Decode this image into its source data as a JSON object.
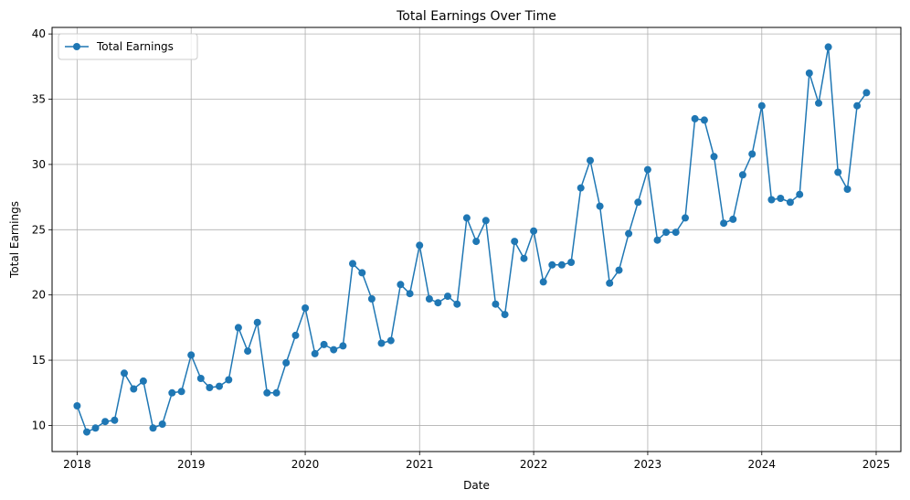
{
  "chart_data": {
    "type": "line",
    "title": "Total Earnings Over Time",
    "xlabel": "Date",
    "ylabel": "Total Earnings",
    "grid": true,
    "legend_position": "top-left",
    "x_ticks": [
      "2018",
      "2019",
      "2020",
      "2021",
      "2022",
      "2023",
      "2024",
      "2025"
    ],
    "y_ticks": [
      10,
      15,
      20,
      25,
      30,
      35,
      40
    ],
    "xlim": [
      "2017-10-13",
      "2025-03-21"
    ],
    "ylim": [
      8.0,
      40.5
    ],
    "series": [
      {
        "name": "Total Earnings",
        "color": "#1f77b4",
        "marker": "circle",
        "x": [
          "2018-01-01",
          "2018-02-01",
          "2018-03-01",
          "2018-04-01",
          "2018-05-01",
          "2018-06-01",
          "2018-07-01",
          "2018-08-01",
          "2018-09-01",
          "2018-10-01",
          "2018-11-01",
          "2018-12-01",
          "2019-01-01",
          "2019-02-01",
          "2019-03-01",
          "2019-04-01",
          "2019-05-01",
          "2019-06-01",
          "2019-07-01",
          "2019-08-01",
          "2019-09-01",
          "2019-10-01",
          "2019-11-01",
          "2019-12-01",
          "2020-01-01",
          "2020-02-01",
          "2020-03-01",
          "2020-04-01",
          "2020-05-01",
          "2020-06-01",
          "2020-07-01",
          "2020-08-01",
          "2020-09-01",
          "2020-10-01",
          "2020-11-01",
          "2020-12-01",
          "2021-01-01",
          "2021-02-01",
          "2021-03-01",
          "2021-04-01",
          "2021-05-01",
          "2021-06-01",
          "2021-07-01",
          "2021-08-01",
          "2021-09-01",
          "2021-10-01",
          "2021-11-01",
          "2021-12-01",
          "2022-01-01",
          "2022-02-01",
          "2022-03-01",
          "2022-04-01",
          "2022-05-01",
          "2022-06-01",
          "2022-07-01",
          "2022-08-01",
          "2022-09-01",
          "2022-10-01",
          "2022-11-01",
          "2022-12-01",
          "2023-01-01",
          "2023-02-01",
          "2023-03-01",
          "2023-04-01",
          "2023-05-01",
          "2023-06-01",
          "2023-07-01",
          "2023-08-01",
          "2023-09-01",
          "2023-10-01",
          "2023-11-01",
          "2023-12-01",
          "2024-01-01",
          "2024-02-01",
          "2024-03-01",
          "2024-04-01",
          "2024-05-01",
          "2024-06-01",
          "2024-07-01",
          "2024-08-01",
          "2024-09-01",
          "2024-10-01",
          "2024-11-01",
          "2024-12-01"
        ],
        "y": [
          11.5,
          9.5,
          9.8,
          10.3,
          10.4,
          14.0,
          12.8,
          13.4,
          9.8,
          10.1,
          12.5,
          12.6,
          15.4,
          13.6,
          12.9,
          13.0,
          13.5,
          17.5,
          15.7,
          17.9,
          12.5,
          12.5,
          14.8,
          16.9,
          19.0,
          15.5,
          16.2,
          15.8,
          16.1,
          22.4,
          21.7,
          19.7,
          16.3,
          16.5,
          20.8,
          20.1,
          23.8,
          19.7,
          19.4,
          19.9,
          19.3,
          25.9,
          24.1,
          25.7,
          19.3,
          18.5,
          24.1,
          22.8,
          24.9,
          21.0,
          22.3,
          22.3,
          22.5,
          28.2,
          30.3,
          26.8,
          20.9,
          21.9,
          24.7,
          27.1,
          29.6,
          24.2,
          24.8,
          24.8,
          25.9,
          33.5,
          33.4,
          30.6,
          25.5,
          25.8,
          29.2,
          30.8,
          34.5,
          27.3,
          27.4,
          27.1,
          27.7,
          37.0,
          34.7,
          39.0,
          29.4,
          28.1,
          34.5,
          35.5
        ]
      }
    ]
  }
}
